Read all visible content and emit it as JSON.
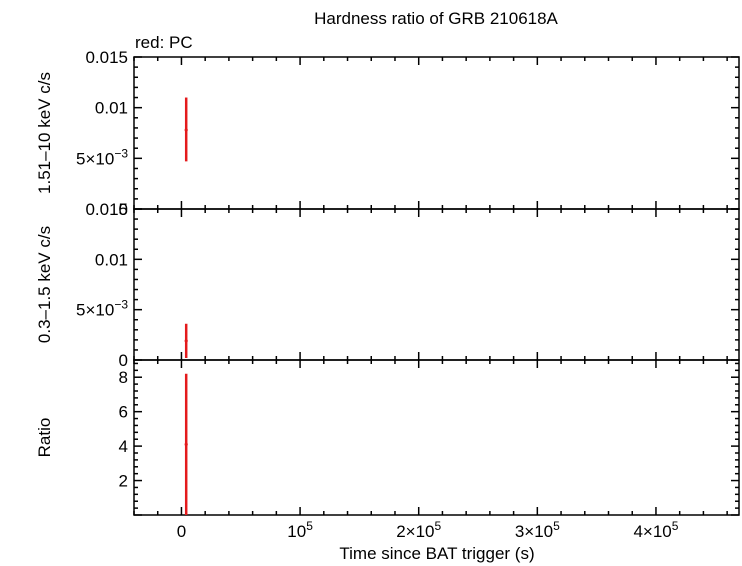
{
  "chart_data": {
    "type": "scatter",
    "title": "Hardness ratio of GRB 210618A",
    "legend_note": "red: PC",
    "xlabel": "Time since BAT trigger (s)",
    "x_range": [
      -40000,
      470000
    ],
    "x_ticks": [
      {
        "value": 0,
        "label": "0",
        "exp": ""
      },
      {
        "value": 100000,
        "label": "10",
        "exp": "5"
      },
      {
        "value": 200000,
        "label": "2×10",
        "exp": "5"
      },
      {
        "value": 300000,
        "label": "3×10",
        "exp": "5"
      },
      {
        "value": 400000,
        "label": "4×10",
        "exp": "5"
      }
    ],
    "panels": [
      {
        "ylabel": "1.51–10 keV c/s",
        "y_range": [
          0,
          0.015
        ],
        "y_ticks": [
          {
            "value": 0,
            "label": "0",
            "exp": ""
          },
          {
            "value": 0.005,
            "label": "5×10",
            "exp": "−3"
          },
          {
            "value": 0.01,
            "label": "0.01",
            "exp": ""
          },
          {
            "value": 0.015,
            "label": "0.015",
            "exp": ""
          }
        ],
        "points": [
          {
            "x": 4000,
            "y": 0.0078,
            "ylo": 0.0047,
            "yhi": 0.011
          }
        ]
      },
      {
        "ylabel": "0.3–1.5 keV c/s",
        "y_range": [
          0,
          0.015
        ],
        "y_ticks": [
          {
            "value": 0,
            "label": "0",
            "exp": ""
          },
          {
            "value": 0.005,
            "label": "5×10",
            "exp": "−3"
          },
          {
            "value": 0.01,
            "label": "0.01",
            "exp": ""
          },
          {
            "value": 0.015,
            "label": "0.015",
            "exp": ""
          }
        ],
        "points": [
          {
            "x": 4000,
            "y": 0.0019,
            "ylo": 0.0002,
            "yhi": 0.0036
          }
        ]
      },
      {
        "ylabel": "Ratio",
        "y_range": [
          0,
          9
        ],
        "y_ticks": [
          {
            "value": 2,
            "label": "2",
            "exp": ""
          },
          {
            "value": 4,
            "label": "4",
            "exp": ""
          },
          {
            "value": 6,
            "label": "6",
            "exp": ""
          },
          {
            "value": 8,
            "label": "8",
            "exp": ""
          }
        ],
        "points": [
          {
            "x": 4000,
            "y": 4.1,
            "ylo": 0,
            "yhi": 8.2
          }
        ]
      }
    ],
    "series": [
      {
        "name": "PC",
        "color": "#e41a1c"
      }
    ]
  }
}
